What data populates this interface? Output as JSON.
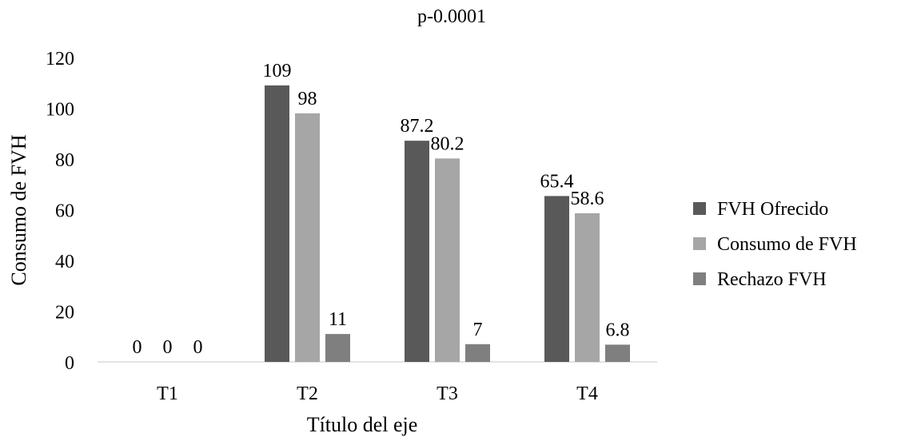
{
  "chart_data": {
    "type": "bar",
    "title": "p-0.0001",
    "xlabel": "Título del eje",
    "ylabel": "Consumo de FVH",
    "categories": [
      "T1",
      "T2",
      "T3",
      "T4"
    ],
    "ylim": [
      0,
      120
    ],
    "yticks": [
      "0",
      "20",
      "40",
      "60",
      "80",
      "100",
      "120"
    ],
    "grid": false,
    "legend_position": "right",
    "series": [
      {
        "name": "FVH Ofrecido",
        "color": "#595959",
        "values": [
          0,
          109,
          87.2,
          65.4
        ],
        "labels": [
          "0",
          "109",
          "87.2",
          "65.4"
        ]
      },
      {
        "name": "Consumo de FVH",
        "color": "#a6a6a6",
        "values": [
          0,
          98,
          80.2,
          58.6
        ],
        "labels": [
          "0",
          "98",
          "80.2",
          "58.6"
        ]
      },
      {
        "name": "Rechazo FVH",
        "color": "#7f7f7f",
        "values": [
          0,
          11,
          7,
          6.8
        ],
        "labels": [
          "0",
          "11",
          "7",
          "6.8"
        ]
      }
    ]
  }
}
